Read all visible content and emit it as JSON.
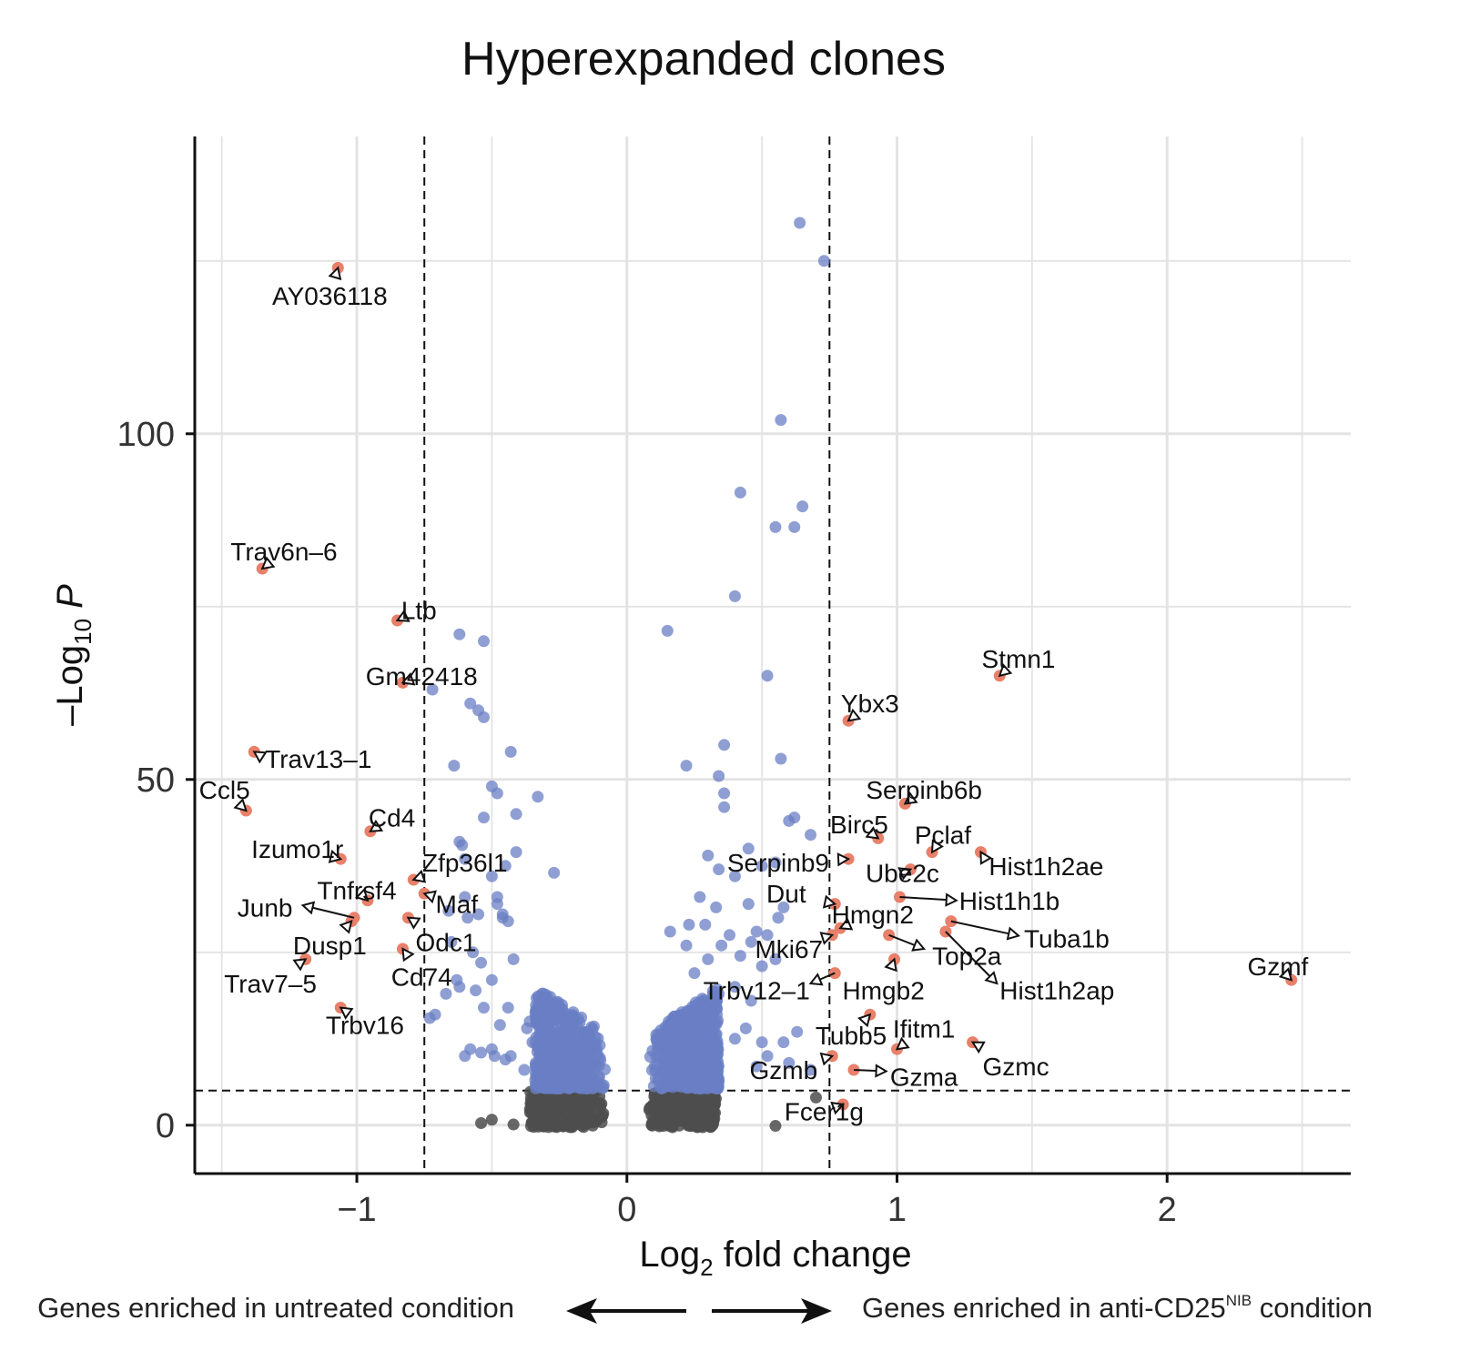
{
  "chart_data": {
    "type": "scatter",
    "title": "Hyperexpanded clones",
    "xlabel": {
      "base": "Log",
      "sub": "2",
      "rest": " fold change"
    },
    "ylabel": {
      "base": "–Log",
      "sub": "10",
      "rest": " P"
    },
    "xlim": [
      -1.6,
      2.68
    ],
    "ylim": [
      -7,
      143
    ],
    "xticks": [
      -1,
      0,
      1,
      2
    ],
    "xtick_labels": [
      "−1",
      "0",
      "1",
      "2"
    ],
    "yticks": [
      0,
      50,
      100
    ],
    "ytick_labels": [
      "0",
      "50",
      "100"
    ],
    "fc_cutoff": 0.75,
    "p_cutoff": 5,
    "grid": true,
    "colors": {
      "significant": "#6a7fc4",
      "not_significant": "#4d4d4d",
      "highlight": "#e8806a"
    },
    "blue_points": [
      [
        0.64,
        130.5
      ],
      [
        0.73,
        125
      ],
      [
        0.57,
        102
      ],
      [
        0.42,
        91.5
      ],
      [
        0.65,
        89.5
      ],
      [
        0.55,
        86.5
      ],
      [
        0.62,
        86.5
      ],
      [
        0.4,
        76.5
      ],
      [
        0.15,
        71.5
      ],
      [
        0.52,
        65
      ],
      [
        0.36,
        55
      ],
      [
        0.57,
        53
      ],
      [
        0.22,
        52
      ],
      [
        0.34,
        50.5
      ],
      [
        0.36,
        48
      ],
      [
        0.36,
        46
      ],
      [
        0.62,
        44.5
      ],
      [
        0.6,
        44
      ],
      [
        0.68,
        42
      ],
      [
        0.3,
        39
      ],
      [
        0.45,
        40
      ],
      [
        0.55,
        38
      ],
      [
        0.5,
        37.5
      ],
      [
        0.34,
        37
      ],
      [
        0.4,
        36
      ],
      [
        0.27,
        33
      ],
      [
        0.45,
        32
      ],
      [
        0.33,
        31.5
      ],
      [
        0.29,
        29
      ],
      [
        0.23,
        29
      ],
      [
        0.16,
        28
      ],
      [
        0.38,
        27.5
      ],
      [
        0.48,
        28
      ],
      [
        0.56,
        30
      ],
      [
        0.58,
        31.5
      ],
      [
        0.22,
        26
      ],
      [
        0.35,
        26
      ],
      [
        0.46,
        26.5
      ],
      [
        0.52,
        27.5
      ],
      [
        0.42,
        24.5
      ],
      [
        0.3,
        24
      ],
      [
        0.5,
        23
      ],
      [
        0.55,
        24
      ],
      [
        0.25,
        22
      ],
      [
        0.4,
        20
      ],
      [
        0.34,
        19
      ],
      [
        0.46,
        18
      ],
      [
        0.44,
        14
      ],
      [
        0.5,
        12
      ],
      [
        0.4,
        12.5
      ],
      [
        0.52,
        10
      ],
      [
        0.6,
        9
      ],
      [
        0.63,
        13.5
      ],
      [
        0.58,
        12
      ],
      [
        0.48,
        8.5
      ],
      [
        0.68,
        8
      ],
      [
        -0.72,
        63
      ],
      [
        -0.62,
        71
      ],
      [
        -0.53,
        70
      ],
      [
        -0.58,
        61
      ],
      [
        -0.55,
        60
      ],
      [
        -0.53,
        59
      ],
      [
        -0.43,
        54
      ],
      [
        -0.64,
        52
      ],
      [
        -0.5,
        49
      ],
      [
        -0.48,
        48
      ],
      [
        -0.33,
        47.5
      ],
      [
        -0.41,
        45
      ],
      [
        -0.53,
        44.5
      ],
      [
        -0.62,
        41
      ],
      [
        -0.61,
        40.5
      ],
      [
        -0.6,
        38.5
      ],
      [
        -0.41,
        39.5
      ],
      [
        -0.45,
        37.5
      ],
      [
        -0.5,
        36
      ],
      [
        -0.27,
        36.5
      ],
      [
        -0.48,
        33
      ],
      [
        -0.48,
        32
      ],
      [
        -0.6,
        33
      ],
      [
        -0.55,
        30.5
      ],
      [
        -0.66,
        31
      ],
      [
        -0.46,
        30
      ],
      [
        -0.46,
        30.5
      ],
      [
        -0.59,
        30
      ],
      [
        -0.44,
        29.5
      ],
      [
        -0.65,
        26.5
      ],
      [
        -0.57,
        25
      ],
      [
        -0.42,
        24
      ],
      [
        -0.54,
        23.5
      ],
      [
        -0.63,
        21
      ],
      [
        -0.67,
        19
      ],
      [
        -0.5,
        21
      ],
      [
        -0.56,
        19.5
      ],
      [
        -0.53,
        17
      ],
      [
        -0.62,
        20
      ],
      [
        -0.44,
        17
      ],
      [
        -0.71,
        16
      ],
      [
        -0.73,
        15.5
      ],
      [
        -0.47,
        14.5
      ],
      [
        -0.36,
        15
      ],
      [
        -0.5,
        11
      ],
      [
        -0.58,
        11
      ],
      [
        -0.6,
        10
      ],
      [
        -0.49,
        10
      ],
      [
        -0.54,
        10.5
      ],
      [
        -0.45,
        9.5
      ],
      [
        -0.38,
        8
      ],
      [
        -0.43,
        10
      ],
      [
        -0.37,
        14
      ],
      [
        -0.32,
        10.5
      ],
      [
        -0.35,
        12
      ]
    ],
    "blue_clusters": [
      {
        "x0": -0.34,
        "x1": -0.08,
        "y0": 5.3,
        "y1": 20,
        "n": 520
      },
      {
        "x0": 0.08,
        "x1": 0.34,
        "y0": 5.3,
        "y1": 20,
        "n": 520
      }
    ],
    "grey_clusters": [
      {
        "x0": -0.36,
        "x1": -0.08,
        "y0": -0.3,
        "y1": 5,
        "n": 300
      },
      {
        "x0": 0.08,
        "x1": 0.33,
        "y0": -0.3,
        "y1": 5,
        "n": 300
      }
    ],
    "grey_points": [
      [
        -0.5,
        0.8
      ],
      [
        -0.42,
        0.1
      ],
      [
        -0.54,
        0.3
      ],
      [
        0.3,
        0.8
      ],
      [
        0.55,
        -0.1
      ],
      [
        0.7,
        4
      ],
      [
        0.27,
        0
      ]
    ],
    "genes": [
      {
        "name": "AY036118",
        "x": -1.07,
        "y": 124,
        "lx": -1.1,
        "ly": 120,
        "ta": "middle",
        "arrow": false
      },
      {
        "name": "Trav6n–6",
        "x": -1.35,
        "y": 80.5,
        "lx": -1.27,
        "ly": 83,
        "ta": "middle",
        "arrow": false
      },
      {
        "name": "Ltb",
        "x": -0.85,
        "y": 73,
        "lx": -0.77,
        "ly": 74.5,
        "ta": "middle",
        "arrow": false
      },
      {
        "name": "Gm42418",
        "x": -0.83,
        "y": 64,
        "lx": -0.76,
        "ly": 65,
        "ta": "middle",
        "arrow": false
      },
      {
        "name": "Trav13–1",
        "x": -1.38,
        "y": 54,
        "lx": -1.34,
        "ly": 53,
        "ta": "start",
        "arrow": false
      },
      {
        "name": "Ccl5",
        "x": -1.41,
        "y": 45.5,
        "lx": -1.49,
        "ly": 48.5,
        "ta": "middle",
        "arrow": false
      },
      {
        "name": "Cd4",
        "x": -0.95,
        "y": 42.5,
        "lx": -0.87,
        "ly": 44.5,
        "ta": "middle",
        "arrow": false
      },
      {
        "name": "Izumo1r",
        "x": -1.06,
        "y": 38.5,
        "lx": -1.22,
        "ly": 40,
        "ta": "middle",
        "arrow": false
      },
      {
        "name": "Zfp36l1",
        "x": -0.79,
        "y": 35.5,
        "lx": -0.6,
        "ly": 38,
        "ta": "middle",
        "arrow": false
      },
      {
        "name": "Tnfrsf4",
        "x": -0.96,
        "y": 32.5,
        "lx": -1.0,
        "ly": 34,
        "ta": "middle",
        "arrow": false
      },
      {
        "name": "Maf",
        "x": -0.75,
        "y": 33.5,
        "lx": -0.63,
        "ly": 32,
        "ta": "middle",
        "arrow": false
      },
      {
        "name": "Junb",
        "x": -1.01,
        "y": 30,
        "lx": -1.34,
        "ly": 31.5,
        "ta": "middle",
        "arrow": true,
        "ax": -1.2,
        "ay": 31.8
      },
      {
        "name": "Odc1",
        "x": -0.81,
        "y": 30,
        "lx": -0.67,
        "ly": 26.5,
        "ta": "middle",
        "arrow": false
      },
      {
        "name": "Dusp1",
        "x": -1.02,
        "y": 29.5,
        "lx": -1.1,
        "ly": 26,
        "ta": "middle",
        "arrow": false
      },
      {
        "name": "Cd74",
        "x": -0.83,
        "y": 25.5,
        "lx": -0.76,
        "ly": 21.5,
        "ta": "middle",
        "arrow": false
      },
      {
        "name": "Trav7–5",
        "x": -1.19,
        "y": 24,
        "lx": -1.32,
        "ly": 20.5,
        "ta": "middle",
        "arrow": false
      },
      {
        "name": "Trbv16",
        "x": -1.06,
        "y": 17,
        "lx": -0.97,
        "ly": 14.5,
        "ta": "middle",
        "arrow": false
      },
      {
        "name": "Stmn1",
        "x": 1.38,
        "y": 65,
        "lx": 1.45,
        "ly": 67.5,
        "ta": "middle",
        "arrow": false
      },
      {
        "name": "Ybx3",
        "x": 0.82,
        "y": 58.5,
        "lx": 0.9,
        "ly": 61,
        "ta": "middle",
        "arrow": false
      },
      {
        "name": "Serpinb6b",
        "x": 1.03,
        "y": 46.5,
        "lx": 1.1,
        "ly": 48.5,
        "ta": "middle",
        "arrow": false
      },
      {
        "name": "Birc5",
        "x": 0.93,
        "y": 41.5,
        "lx": 0.86,
        "ly": 43.5,
        "ta": "middle",
        "arrow": false
      },
      {
        "name": "Pclaf",
        "x": 1.13,
        "y": 39.5,
        "lx": 1.17,
        "ly": 42,
        "ta": "middle",
        "arrow": false
      },
      {
        "name": "Serpinb9",
        "x": 0.82,
        "y": 38.5,
        "lx": 0.56,
        "ly": 38,
        "ta": "middle",
        "arrow": false
      },
      {
        "name": "Hist1h2ae",
        "x": 1.31,
        "y": 39.5,
        "lx": 1.34,
        "ly": 37.5,
        "ta": "start",
        "arrow": false
      },
      {
        "name": "Ube2c",
        "x": 1.05,
        "y": 37,
        "lx": 1.02,
        "ly": 36.5,
        "ta": "middle",
        "arrow": false
      },
      {
        "name": "Dut",
        "x": 0.77,
        "y": 32,
        "lx": 0.59,
        "ly": 33.5,
        "ta": "middle",
        "arrow": false
      },
      {
        "name": "Hist1h1b",
        "x": 1.01,
        "y": 33,
        "lx": 1.23,
        "ly": 32.5,
        "ta": "start",
        "arrow": true,
        "ax": 1.22,
        "ay": 32.5
      },
      {
        "name": "Hmgn2",
        "x": 0.79,
        "y": 28.5,
        "lx": 0.91,
        "ly": 30.5,
        "ta": "middle",
        "arrow": false
      },
      {
        "name": "Tuba1b",
        "x": 1.2,
        "y": 29.5,
        "lx": 1.47,
        "ly": 27,
        "ta": "start",
        "arrow": true,
        "ax": 1.45,
        "ay": 27.4
      },
      {
        "name": "Top2a",
        "x": 0.97,
        "y": 27.5,
        "lx": 1.13,
        "ly": 24.5,
        "ta": "start",
        "arrow": true,
        "ax": 1.1,
        "ay": 25.5
      },
      {
        "name": "Mki67",
        "x": 0.76,
        "y": 27.5,
        "lx": 0.6,
        "ly": 25.5,
        "ta": "middle",
        "arrow": false
      },
      {
        "name": "Hist1h2ap",
        "x": 1.18,
        "y": 28,
        "lx": 1.38,
        "ly": 19.5,
        "ta": "start",
        "arrow": true,
        "ax": 1.37,
        "ay": 20.5
      },
      {
        "name": "Gzmf",
        "x": 2.46,
        "y": 21,
        "lx": 2.41,
        "ly": 23,
        "ta": "middle",
        "arrow": false
      },
      {
        "name": "Trbv12–1",
        "x": 0.77,
        "y": 22,
        "lx": 0.48,
        "ly": 19.5,
        "ta": "middle",
        "arrow": true,
        "ax": 0.68,
        "ay": 20.5
      },
      {
        "name": "Hmgb2",
        "x": 0.99,
        "y": 24,
        "lx": 0.95,
        "ly": 19.5,
        "ta": "middle",
        "arrow": false
      },
      {
        "name": "Tubb5",
        "x": 0.9,
        "y": 16,
        "lx": 0.83,
        "ly": 13,
        "ta": "middle",
        "arrow": false
      },
      {
        "name": "Ifitm1",
        "x": 1.0,
        "y": 11,
        "lx": 1.1,
        "ly": 14,
        "ta": "middle",
        "arrow": false
      },
      {
        "name": "Gzmc",
        "x": 1.28,
        "y": 12,
        "lx": 1.44,
        "ly": 8.5,
        "ta": "middle",
        "arrow": false
      },
      {
        "name": "Gzmb",
        "x": 0.76,
        "y": 10,
        "lx": 0.58,
        "ly": 8,
        "ta": "middle",
        "arrow": false
      },
      {
        "name": "Gzma",
        "x": 0.84,
        "y": 8,
        "lx": 1.1,
        "ly": 7,
        "ta": "middle",
        "arrow": true,
        "ax": 0.96,
        "ay": 7.8
      },
      {
        "name": "Fcer1g",
        "x": 0.8,
        "y": 3,
        "lx": 0.73,
        "ly": 2,
        "ta": "middle",
        "arrow": false
      }
    ],
    "footer": {
      "left": "Genes enriched in untreated condition",
      "right_prefix": "Genes enriched in anti-CD25",
      "right_sup": "NIB",
      "right_suffix": " condition"
    }
  }
}
